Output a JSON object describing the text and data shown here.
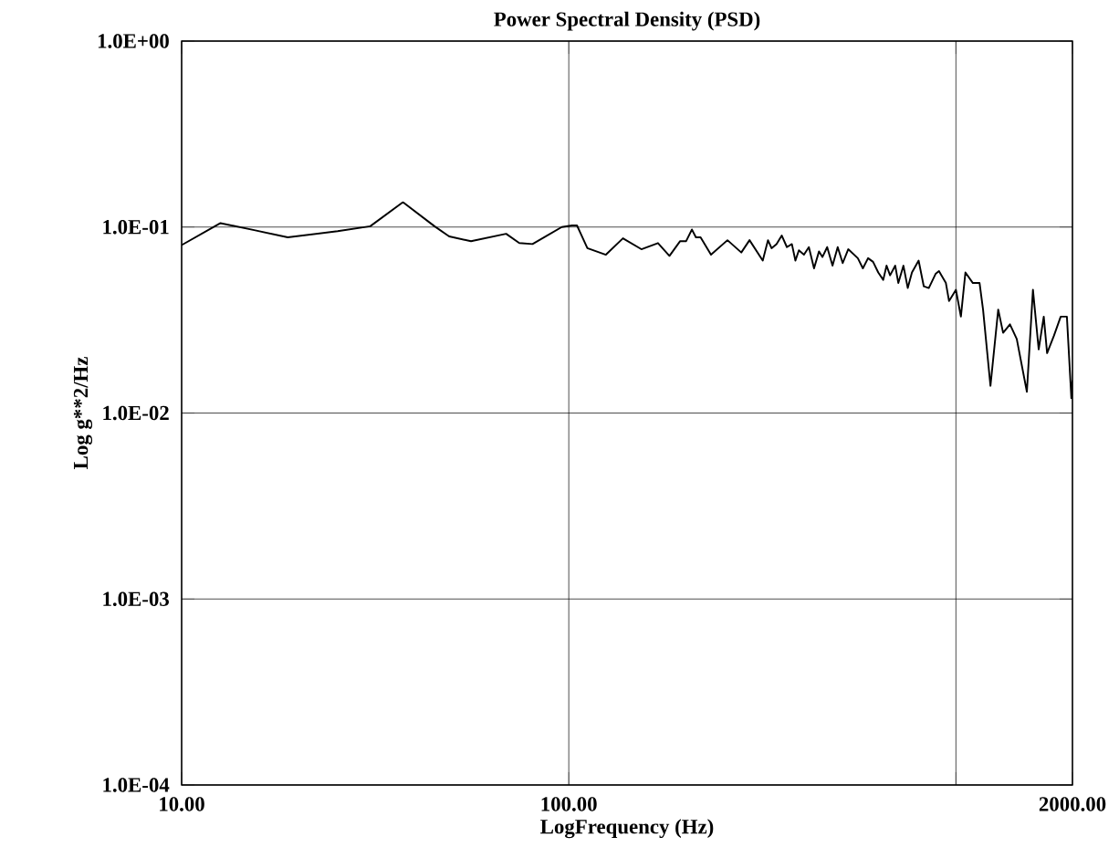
{
  "chart_data": {
    "type": "line",
    "title": "Power Spectral Density (PSD)",
    "xlabel": "LogFrequency (Hz)",
    "ylabel": "Log g**2/Hz",
    "log": "xy",
    "grid": true,
    "marker": "none",
    "line_style": "solid",
    "xlim": [
      10,
      2000
    ],
    "ylim": [
      0.0001,
      1
    ],
    "xticks": [
      {
        "value": 10,
        "label": "10.00"
      },
      {
        "value": 100,
        "label": "100.00"
      },
      {
        "value": 1000,
        "label": null
      },
      {
        "value": 2000,
        "label": "2000.00"
      }
    ],
    "yticks": [
      {
        "value": 0.0001,
        "label": "1.0E-04"
      },
      {
        "value": 0.001,
        "label": "1.0E-03"
      },
      {
        "value": 0.01,
        "label": "1.0E-02"
      },
      {
        "value": 0.1,
        "label": "1.0E-01"
      },
      {
        "value": 1,
        "label": "1.0E+00"
      }
    ],
    "series": [
      {
        "color": "#000000",
        "x": [
          10,
          12.6,
          15.5,
          18.8,
          25.3,
          30.7,
          37.3,
          45,
          49.1,
          55.9,
          68.9,
          74.5,
          80.6,
          95.9,
          102,
          105,
          111.7,
          124.7,
          138,
          154,
          170,
          182,
          194,
          201,
          208,
          213,
          219,
          233,
          257,
          279,
          293,
          317,
          327,
          334,
          344,
          355,
          366,
          377,
          385,
          393,
          405,
          417,
          430,
          443,
          452,
          465,
          480,
          495,
          510,
          527,
          558,
          575,
          593,
          611,
          630,
          649,
          662,
          676,
          697,
          710,
          732,
          751,
          770,
          801,
          826,
          851,
          886,
          904,
          942,
          960,
          1000,
          1030,
          1058,
          1106,
          1151,
          1175,
          1228,
          1286,
          1324,
          1379,
          1436,
          1525,
          1581,
          1636,
          1686,
          1720,
          1791,
          1865,
          1935,
          1987,
          2000
        ],
        "values": [
          0.08,
          0.105,
          0.096,
          0.088,
          0.095,
          0.101,
          0.136,
          0.101,
          0.089,
          0.084,
          0.092,
          0.082,
          0.081,
          0.1,
          0.102,
          0.102,
          0.077,
          0.071,
          0.087,
          0.076,
          0.082,
          0.07,
          0.084,
          0.084,
          0.097,
          0.088,
          0.088,
          0.071,
          0.085,
          0.073,
          0.085,
          0.066,
          0.085,
          0.077,
          0.081,
          0.09,
          0.078,
          0.081,
          0.066,
          0.075,
          0.071,
          0.078,
          0.06,
          0.074,
          0.069,
          0.078,
          0.062,
          0.078,
          0.064,
          0.076,
          0.068,
          0.06,
          0.068,
          0.065,
          0.057,
          0.052,
          0.062,
          0.055,
          0.062,
          0.05,
          0.062,
          0.047,
          0.057,
          0.066,
          0.048,
          0.047,
          0.056,
          0.058,
          0.05,
          0.04,
          0.046,
          0.033,
          0.057,
          0.05,
          0.05,
          0.036,
          0.014,
          0.036,
          0.027,
          0.03,
          0.025,
          0.013,
          0.046,
          0.022,
          0.033,
          0.021,
          0.026,
          0.033,
          0.033,
          0.012,
          0.015
        ]
      }
    ]
  }
}
